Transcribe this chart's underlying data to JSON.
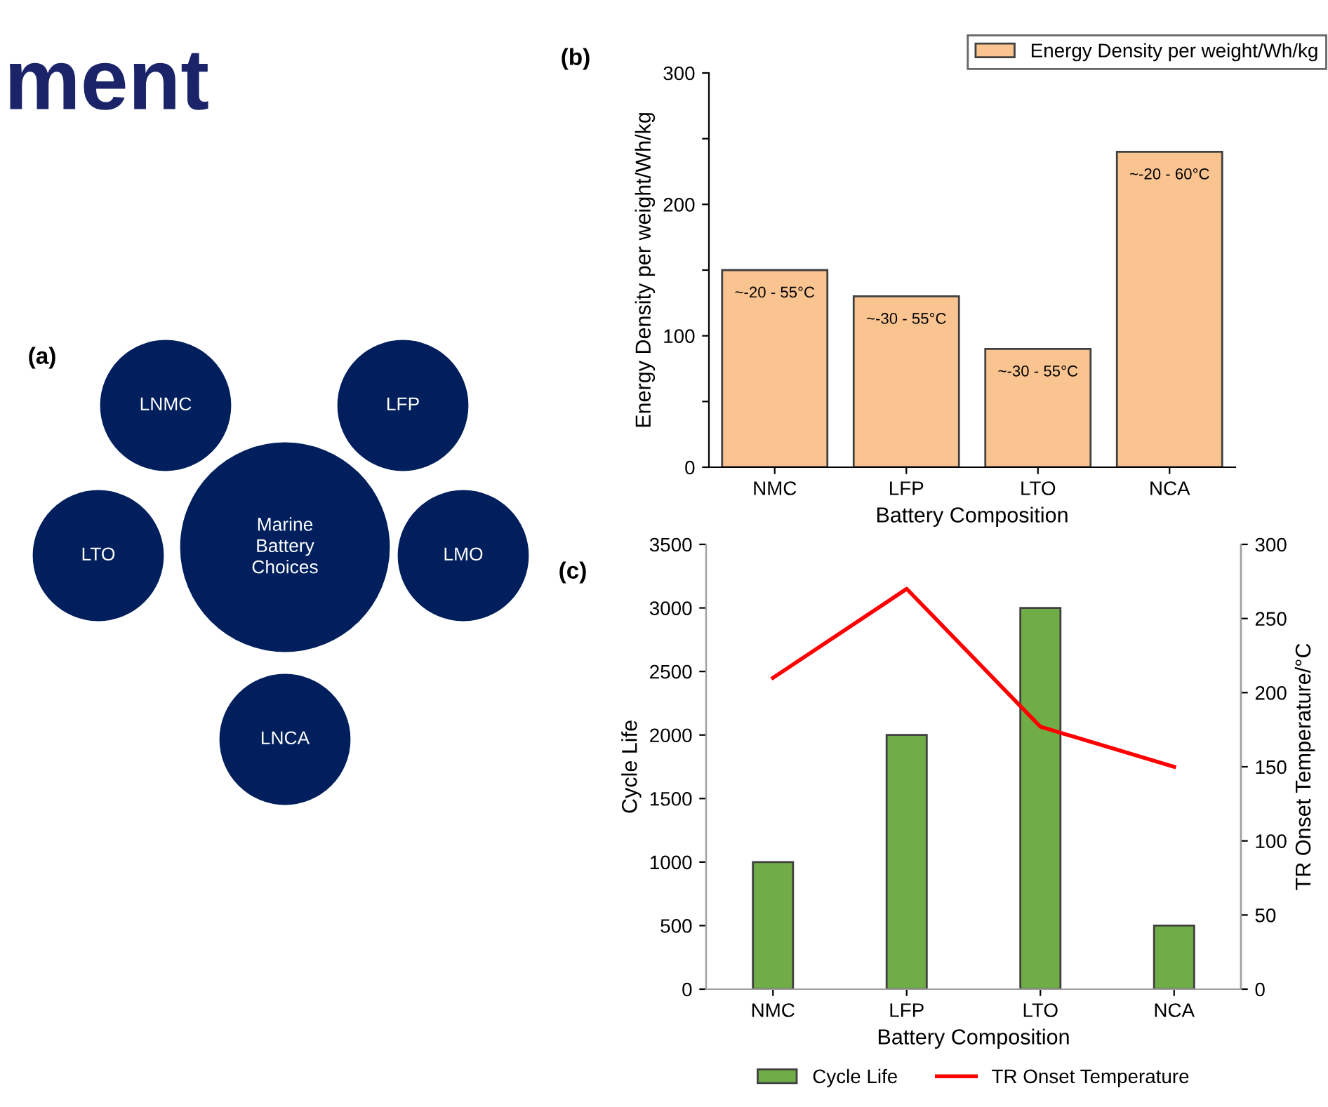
{
  "chart_data": [
    {
      "type": "other",
      "title": "ment",
      "annotations": [
        "(a)",
        "LNMC",
        "LFP",
        "Marine\nBattery\nChoices",
        "LTO",
        "LMO",
        "LNCA"
      ]
    },
    {
      "type": "bar",
      "categories": [
        "NMC",
        "LFP",
        "LTO",
        "NCA"
      ],
      "xlabel": "Battery Composition",
      "ylabel": "Energy Density per weight/Wh/kg",
      "series": [
        {
          "name": "Energy Density per weight/Wh/kg",
          "color": "#fac491",
          "values": [
            150,
            130,
            90,
            240
          ]
        }
      ],
      "ylim": [
        0,
        300
      ],
      "yticks": [
        0,
        {
          "value": 50,
          "label": null
        },
        100,
        {
          "value": 150,
          "label": null
        },
        200,
        {
          "value": 250,
          "label": null
        },
        300
      ],
      "legend": "top right",
      "annotations": [
        "(b)",
        "~-20 - 55°C",
        "~-30 - 55°C",
        "~-30 - 55°C",
        "~-20 - 60°C"
      ]
    },
    {
      "type": "bar",
      "categories": [
        "NMC",
        "LFP",
        "LTO",
        "NCA"
      ],
      "xlabel": "Battery Composition",
      "ylabel": "Cycle Life",
      "y2label": "TR Onset Temperature/°C",
      "series": [
        {
          "name": "Cycle Life",
          "color": "#70ad47",
          "values": [
            1000,
            2000,
            3000,
            500
          ]
        },
        {
          "name": "TR Onset Temperature",
          "type": "line",
          "axis": "y2",
          "color": "#ff0000",
          "values": [
            210,
            270,
            177,
            150
          ]
        }
      ],
      "ylim": [
        0,
        3500
      ],
      "yticks": [
        0,
        500,
        1000,
        1500,
        2000,
        2500,
        3000,
        3500
      ],
      "y2lim": [
        0,
        300
      ],
      "y2ticks": [
        0,
        50,
        100,
        150,
        200,
        250,
        300
      ],
      "legend": "bottom",
      "annotations": [
        "(c)"
      ]
    }
  ]
}
